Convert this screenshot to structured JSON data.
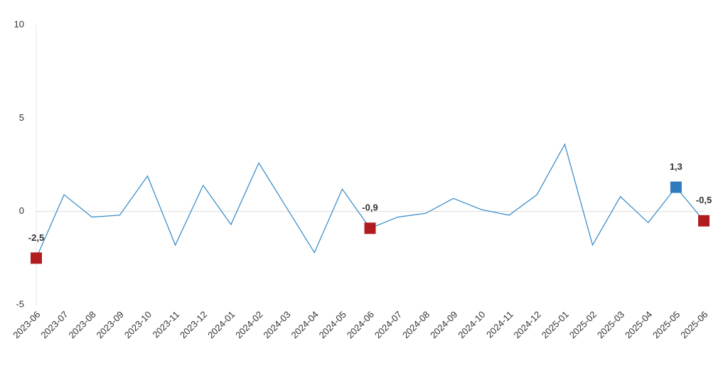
{
  "chart_data": {
    "type": "line",
    "categories": [
      "2023-06",
      "2023-07",
      "2023-08",
      "2023-09",
      "2023-10",
      "2023-11",
      "2023-12",
      "2024-01",
      "2024-02",
      "2024-03",
      "2024-04",
      "2024-05",
      "2024-06",
      "2024-07",
      "2024-08",
      "2024-09",
      "2024-10",
      "2024-11",
      "2024-12",
      "2025-01",
      "2025-02",
      "2025-03",
      "2025-04",
      "2025-05",
      "2025-06"
    ],
    "values": [
      -2.5,
      0.9,
      -0.3,
      -0.2,
      1.9,
      -1.8,
      1.4,
      -0.7,
      2.6,
      0.2,
      -2.2,
      1.2,
      -0.9,
      -0.3,
      -0.1,
      0.7,
      0.1,
      -0.2,
      0.9,
      3.6,
      -1.8,
      0.8,
      -0.6,
      1.3,
      -0.5
    ],
    "value_labels": [
      "-2,5",
      null,
      null,
      null,
      null,
      null,
      null,
      null,
      null,
      null,
      null,
      null,
      "-0,9",
      null,
      null,
      null,
      null,
      null,
      null,
      null,
      null,
      null,
      null,
      "1,3",
      "-0,5"
    ],
    "marker_colors": [
      "#b01c20",
      null,
      null,
      null,
      null,
      null,
      null,
      null,
      null,
      null,
      null,
      null,
      "#b01c20",
      null,
      null,
      null,
      null,
      null,
      null,
      null,
      null,
      null,
      null,
      "#2e7bbf",
      "#b01c20"
    ],
    "color": "#3f8fc9",
    "ylim": [
      -5,
      10
    ],
    "yticks": [
      10,
      5,
      0,
      -5
    ]
  }
}
